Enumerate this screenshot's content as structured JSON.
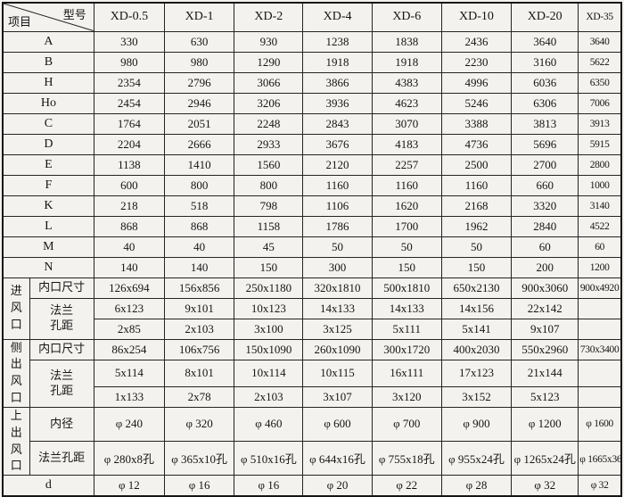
{
  "table": {
    "header": {
      "corner_top": "型号",
      "corner_bottom": "项目",
      "columns": [
        "XD-0.5",
        "XD-1",
        "XD-2",
        "XD-4",
        "XD-6",
        "XD-10",
        "XD-20",
        "XD-35"
      ]
    },
    "simple_rows": [
      {
        "label": "A",
        "values": [
          "330",
          "630",
          "930",
          "1238",
          "1838",
          "2436",
          "3640",
          "3640"
        ]
      },
      {
        "label": "B",
        "values": [
          "980",
          "980",
          "1290",
          "1918",
          "1918",
          "2230",
          "3160",
          "5622"
        ]
      },
      {
        "label": "H",
        "values": [
          "2354",
          "2796",
          "3066",
          "3866",
          "4383",
          "4996",
          "6036",
          "6350"
        ]
      },
      {
        "label": "Ho",
        "values": [
          "2454",
          "2946",
          "3206",
          "3936",
          "4623",
          "5246",
          "6306",
          "7006"
        ]
      },
      {
        "label": "C",
        "values": [
          "1764",
          "2051",
          "2248",
          "2843",
          "3070",
          "3388",
          "3813",
          "3913"
        ]
      },
      {
        "label": "D",
        "values": [
          "2204",
          "2666",
          "2933",
          "3676",
          "4183",
          "4736",
          "5696",
          "5915"
        ]
      },
      {
        "label": "E",
        "values": [
          "1138",
          "1410",
          "1560",
          "2120",
          "2257",
          "2500",
          "2700",
          "2800"
        ]
      },
      {
        "label": "F",
        "values": [
          "600",
          "800",
          "800",
          "1160",
          "1160",
          "1160",
          "660",
          "1000"
        ]
      },
      {
        "label": "K",
        "values": [
          "218",
          "518",
          "798",
          "1106",
          "1620",
          "2168",
          "3320",
          "3140"
        ]
      },
      {
        "label": "L",
        "values": [
          "868",
          "868",
          "1158",
          "1786",
          "1700",
          "1962",
          "2840",
          "4522"
        ]
      },
      {
        "label": "M",
        "values": [
          "40",
          "40",
          "45",
          "50",
          "50",
          "50",
          "60",
          "60"
        ]
      },
      {
        "label": "N",
        "values": [
          "140",
          "140",
          "150",
          "300",
          "150",
          "150",
          "200",
          "1200"
        ]
      }
    ],
    "groups": [
      {
        "label": "进风口",
        "label_lines": [
          "进",
          "风",
          "口"
        ],
        "rows": [
          {
            "label": "内口尺寸",
            "label_lines": [
              "内口尺寸"
            ],
            "label_rowspan": 1,
            "values": [
              "126x694",
              "156x856",
              "250x1180",
              "320x1810",
              "500x1810",
              "650x2130",
              "900x3060",
              "900x4920"
            ]
          },
          {
            "label": "法兰孔距",
            "label_lines": [
              "法兰",
              "孔距"
            ],
            "label_rowspan": 2,
            "values": [
              "6x123",
              "9x101",
              "10x123",
              "14x133",
              "14x133",
              "14x156",
              "22x142",
              ""
            ]
          },
          {
            "values": [
              "2x85",
              "2x103",
              "3x100",
              "3x125",
              "5x111",
              "5x141",
              "9x107",
              ""
            ]
          }
        ]
      },
      {
        "label": "侧出风口",
        "label_lines": [
          "侧",
          "出",
          "风",
          "口"
        ],
        "rows": [
          {
            "label": "内口尺寸",
            "label_lines": [
              "内口尺寸"
            ],
            "label_rowspan": 1,
            "values": [
              "86x254",
              "106x756",
              "150x1090",
              "260x1090",
              "300x1720",
              "400x2030",
              "550x2960",
              "730x3400"
            ]
          },
          {
            "label": "法兰孔距",
            "label_lines": [
              "法兰",
              "孔距"
            ],
            "label_rowspan": 2,
            "values": [
              "5x114",
              "8x101",
              "10x114",
              "10x115",
              "16x111",
              "17x123",
              "21x144",
              ""
            ]
          },
          {
            "values": [
              "1x133",
              "2x78",
              "2x103",
              "3x107",
              "3x120",
              "3x152",
              "5x123",
              ""
            ]
          }
        ]
      },
      {
        "label": "上出风口",
        "label_lines": [
          "上出",
          "风口"
        ],
        "rows": [
          {
            "label": "内径",
            "label_lines": [
              "内径"
            ],
            "label_rowspan": 1,
            "values": [
              "φ 240",
              "φ 320",
              "φ 460",
              "φ 600",
              "φ 700",
              "φ 900",
              "φ 1200",
              "φ 1600"
            ]
          },
          {
            "label": "法兰孔距",
            "label_lines": [
              "法兰孔距"
            ],
            "label_rowspan": 1,
            "values": [
              "φ 280x8孔",
              "φ 365x10孔",
              "φ 510x16孔",
              "φ 644x16孔",
              "φ 755x18孔",
              "φ 955x24孔",
              "φ 1265x24孔",
              "φ 1665x36孔"
            ]
          }
        ]
      }
    ],
    "d_row": {
      "label": "d",
      "values": [
        "φ 12",
        "φ 16",
        "φ 16",
        "φ 20",
        "φ 22",
        "φ 28",
        "φ 32",
        "φ 32"
      ]
    }
  }
}
